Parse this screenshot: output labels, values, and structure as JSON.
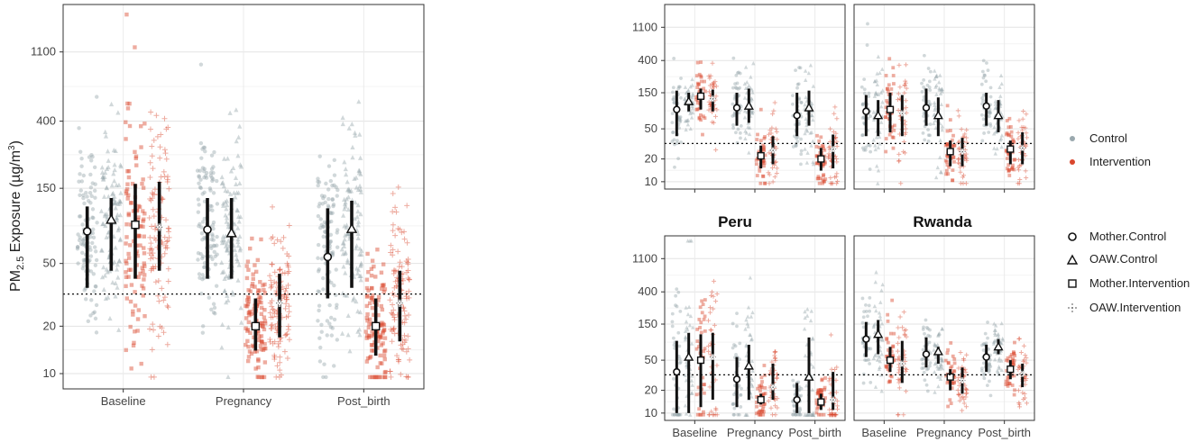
{
  "chart_data": {
    "type": "scatter",
    "ylabel_main": "PM",
    "ylabel_sub": "2.5",
    "ylabel_rest": " Exposure (µg/m",
    "ylabel_sup": "3",
    "ylabel_end": ")",
    "y_scale": "log",
    "ylim": [
      8,
      2200
    ],
    "y_ticks": [
      10,
      20,
      50,
      150,
      400,
      1100
    ],
    "reference_line": 32,
    "categories": [
      "Baseline",
      "Pregnancy",
      "Post_birth"
    ],
    "groups": [
      "Mother.Control",
      "OAW.Control",
      "Mother.Intervention",
      "OAW.Intervention"
    ],
    "colors": {
      "Control": "#9aa8ae",
      "Intervention": "#d9462d"
    },
    "legend_arms": [
      "Control",
      "Intervention"
    ],
    "legend_groups": [
      "Mother.Control",
      "OAW.Control",
      "Mother.Intervention",
      "OAW.Intervention"
    ],
    "panels": [
      {
        "title": "",
        "summary": {
          "Baseline": [
            [
              80,
              35,
              115
            ],
            [
              95,
              45,
              130
            ],
            [
              88,
              40,
              160
            ],
            [
              85,
              45,
              165
            ]
          ],
          "Pregnancy": [
            [
              82,
              40,
              130
            ],
            [
              78,
              40,
              130
            ],
            [
              20,
              14,
              30
            ],
            [
              28,
              17,
              43
            ]
          ],
          "Post_birth": [
            [
              55,
              30,
              112
            ],
            [
              83,
              35,
              125
            ],
            [
              20,
              13,
              30
            ],
            [
              28,
              16,
              45
            ]
          ]
        }
      },
      {
        "title": "",
        "summary": {
          "Baseline": [
            [
              90,
              40,
              160
            ],
            [
              115,
              85,
              150
            ],
            [
              135,
              90,
              170
            ],
            [
              125,
              85,
              165
            ]
          ],
          "Pregnancy": [
            [
              95,
              55,
              150
            ],
            [
              100,
              60,
              170
            ],
            [
              22,
              15,
              30
            ],
            [
              26,
              17,
              40
            ]
          ],
          "Post_birth": [
            [
              75,
              40,
              150
            ],
            [
              95,
              55,
              160
            ],
            [
              20,
              14,
              28
            ],
            [
              27,
              15,
              42
            ]
          ]
        }
      },
      {
        "title": "",
        "summary": {
          "Baseline": [
            [
              85,
              40,
              140
            ],
            [
              75,
              40,
              120
            ],
            [
              90,
              45,
              150
            ],
            [
              80,
              40,
              140
            ]
          ],
          "Pregnancy": [
            [
              95,
              55,
              170
            ],
            [
              75,
              40,
              130
            ],
            [
              25,
              16,
              35
            ],
            [
              25,
              16,
              38
            ]
          ],
          "Post_birth": [
            [
              100,
              55,
              150
            ],
            [
              75,
              45,
              120
            ],
            [
              27,
              17,
              35
            ],
            [
              28,
              17,
              45
            ]
          ]
        }
      },
      {
        "title": "Peru",
        "summary": {
          "Baseline": [
            [
              35,
              10,
              90
            ],
            [
              55,
              10,
              115
            ],
            [
              50,
              12,
              110
            ],
            [
              55,
              15,
              115
            ]
          ],
          "Pregnancy": [
            [
              28,
              12,
              55
            ],
            [
              42,
              15,
              80
            ],
            [
              15,
              13,
              18
            ],
            [
              22,
              15,
              45
            ]
          ],
          "Post_birth": [
            [
              15,
              10,
              25
            ],
            [
              30,
              10,
              100
            ],
            [
              14,
              11,
              18
            ],
            [
              15,
              11,
              35
            ]
          ]
        }
      },
      {
        "title": "Rwanda",
        "summary": {
          "Baseline": [
            [
              95,
              55,
              160
            ],
            [
              110,
              60,
              170
            ],
            [
              50,
              35,
              75
            ],
            [
              45,
              25,
              90
            ]
          ],
          "Pregnancy": [
            [
              60,
              40,
              100
            ],
            [
              65,
              45,
              75
            ],
            [
              30,
              20,
              38
            ],
            [
              27,
              18,
              40
            ]
          ],
          "Post_birth": [
            [
              55,
              35,
              80
            ],
            [
              75,
              60,
              95
            ],
            [
              38,
              28,
              50
            ],
            [
              33,
              22,
              45
            ]
          ]
        }
      }
    ]
  }
}
